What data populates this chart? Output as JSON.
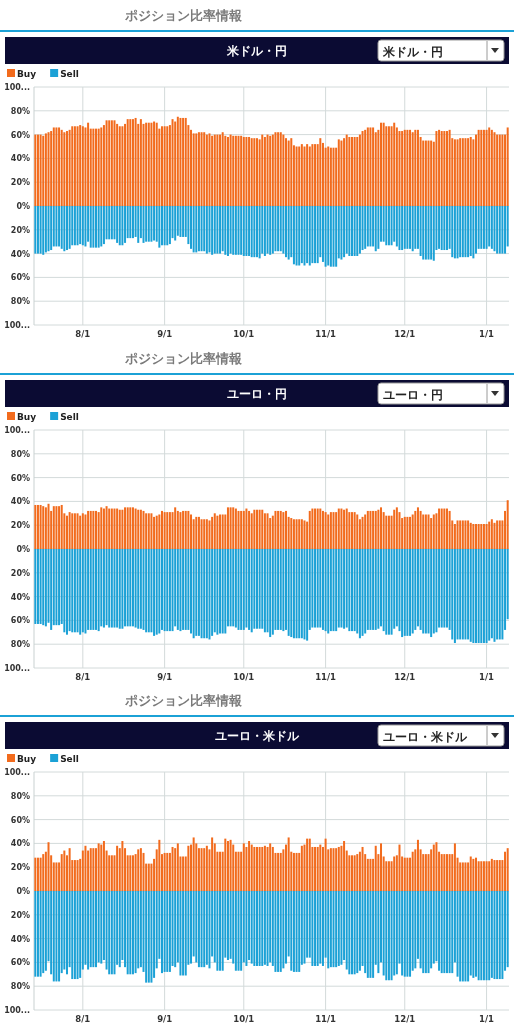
{
  "chart_data": [
    {
      "type": "bar",
      "stacked": true,
      "subtitle": "ポジション比率情報",
      "title": "米ドル・円",
      "annotations": [
        "米ドル・円"
      ],
      "legend": "top left",
      "grid": true,
      "ylim": [
        -100,
        100
      ],
      "yticks": [
        {
          "value": 100,
          "label": "100..."
        },
        {
          "value": 80,
          "label": "80%"
        },
        {
          "value": 60,
          "label": "60%"
        },
        {
          "value": 40,
          "label": "40%"
        },
        {
          "value": 20,
          "label": "20%"
        },
        {
          "value": 0,
          "label": "0%"
        },
        {
          "value": -20,
          "label": "20%"
        },
        {
          "value": -40,
          "label": "40%"
        },
        {
          "value": -60,
          "label": "60%"
        },
        {
          "value": -80,
          "label": "80%"
        },
        {
          "value": -100,
          "label": "100..."
        }
      ],
      "categories": [
        null,
        null,
        null,
        null,
        null,
        null,
        null,
        null,
        null,
        null,
        null,
        null,
        null,
        null,
        null,
        null,
        null,
        null,
        "8/1",
        null,
        null,
        null,
        null,
        null,
        null,
        null,
        null,
        null,
        null,
        null,
        null,
        null,
        null,
        null,
        null,
        null,
        null,
        null,
        null,
        null,
        null,
        null,
        null,
        null,
        null,
        null,
        null,
        null,
        null,
        "9/1",
        null,
        null,
        null,
        null,
        null,
        null,
        null,
        null,
        null,
        null,
        null,
        null,
        null,
        null,
        null,
        null,
        null,
        null,
        null,
        null,
        null,
        null,
        null,
        null,
        null,
        null,
        null,
        null,
        null,
        "10/1",
        null,
        null,
        null,
        null,
        null,
        null,
        null,
        null,
        null,
        null,
        null,
        null,
        null,
        null,
        null,
        null,
        null,
        null,
        null,
        null,
        null,
        null,
        null,
        null,
        null,
        null,
        null,
        null,
        null,
        null,
        "11/1",
        null,
        null,
        null,
        null,
        null,
        null,
        null,
        null,
        null,
        null,
        null,
        null,
        null,
        null,
        null,
        null,
        null,
        null,
        null,
        null,
        null,
        null,
        null,
        null,
        null,
        null,
        null,
        null,
        null,
        "12/1",
        null,
        null,
        null,
        null,
        null,
        null,
        null,
        null,
        null,
        null,
        null,
        null,
        null,
        null,
        null,
        null,
        null,
        null,
        null,
        null,
        null,
        null,
        null,
        null,
        null,
        null,
        null,
        null,
        null,
        null,
        "1/1",
        null,
        null,
        null,
        null,
        null,
        null,
        null,
        null
      ],
      "series": [
        {
          "name": "Buy",
          "color": "#f26b1d",
          "values": [
            60,
            60,
            60,
            59,
            61,
            62,
            63,
            66,
            66,
            66,
            64,
            62,
            63,
            64,
            67,
            67,
            67,
            68,
            67,
            66,
            70,
            65,
            65,
            65,
            65,
            66,
            68,
            72,
            72,
            72,
            72,
            69,
            67,
            67,
            69,
            73,
            73,
            73,
            74,
            69,
            73,
            69,
            70,
            70,
            70,
            71,
            70,
            65,
            67,
            67,
            67,
            68,
            73,
            71,
            75,
            74,
            74,
            74,
            68,
            64,
            61,
            61,
            62,
            62,
            62,
            60,
            61,
            59,
            60,
            60,
            60,
            62,
            59,
            58,
            60,
            59,
            59,
            59,
            59,
            58,
            58,
            58,
            57,
            57,
            57,
            56,
            60,
            58,
            60,
            59,
            60,
            62,
            62,
            62,
            60,
            57,
            55,
            57,
            51,
            50,
            50,
            52,
            50,
            52,
            50,
            52,
            52,
            52,
            57,
            53,
            49,
            50,
            49,
            49,
            49,
            56,
            55,
            57,
            60,
            58,
            58,
            58,
            58,
            60,
            63,
            64,
            66,
            66,
            66,
            62,
            64,
            70,
            70,
            67,
            67,
            67,
            70,
            66,
            63,
            63,
            64,
            64,
            64,
            62,
            64,
            64,
            58,
            55,
            55,
            55,
            55,
            54,
            63,
            64,
            63,
            63,
            63,
            64,
            57,
            56,
            56,
            57,
            57,
            57,
            57,
            58,
            56,
            60,
            64,
            64,
            64,
            64,
            66,
            64,
            62,
            60,
            60,
            60,
            60,
            66
          ]
        },
        {
          "name": "Sell",
          "color": "#1ba1d6",
          "values": [
            -40,
            -40,
            -40,
            -41,
            -39,
            -38,
            -37,
            -34,
            -34,
            -34,
            -36,
            -38,
            -37,
            -36,
            -33,
            -33,
            -33,
            -32,
            -33,
            -34,
            -30,
            -35,
            -35,
            -35,
            -35,
            -34,
            -32,
            -28,
            -28,
            -28,
            -28,
            -31,
            -33,
            -33,
            -31,
            -27,
            -27,
            -27,
            -26,
            -31,
            -27,
            -31,
            -30,
            -30,
            -30,
            -29,
            -30,
            -35,
            -33,
            -33,
            -33,
            -32,
            -27,
            -29,
            -25,
            -26,
            -26,
            -26,
            -32,
            -36,
            -39,
            -39,
            -38,
            -38,
            -38,
            -40,
            -39,
            -41,
            -40,
            -40,
            -40,
            -38,
            -41,
            -42,
            -40,
            -41,
            -41,
            -41,
            -41,
            -42,
            -42,
            -42,
            -43,
            -43,
            -43,
            -44,
            -40,
            -42,
            -40,
            -41,
            -40,
            -38,
            -38,
            -38,
            -40,
            -43,
            -45,
            -43,
            -49,
            -50,
            -50,
            -48,
            -50,
            -48,
            -50,
            -48,
            -48,
            -48,
            -43,
            -47,
            -51,
            -50,
            -51,
            -51,
            -51,
            -44,
            -45,
            -43,
            -40,
            -42,
            -42,
            -42,
            -42,
            -40,
            -37,
            -36,
            -34,
            -34,
            -34,
            -38,
            -36,
            -30,
            -30,
            -33,
            -33,
            -33,
            -30,
            -34,
            -37,
            -37,
            -36,
            -36,
            -36,
            -38,
            -36,
            -36,
            -42,
            -45,
            -45,
            -45,
            -45,
            -46,
            -37,
            -36,
            -37,
            -37,
            -37,
            -36,
            -43,
            -44,
            -44,
            -43,
            -43,
            -43,
            -43,
            -42,
            -44,
            -40,
            -36,
            -36,
            -36,
            -36,
            -34,
            -36,
            -38,
            -40,
            -40,
            -40,
            -40,
            -34
          ]
        }
      ]
    },
    {
      "type": "bar",
      "stacked": true,
      "subtitle": "ポジション比率情報",
      "title": "ユーロ・円",
      "annotations": [
        "ユーロ・円"
      ],
      "legend": "top left",
      "grid": true,
      "ylim": [
        -100,
        100
      ],
      "yticks": [
        {
          "value": 100,
          "label": "100..."
        },
        {
          "value": 80,
          "label": "80%"
        },
        {
          "value": 60,
          "label": "60%"
        },
        {
          "value": 40,
          "label": "40%"
        },
        {
          "value": 20,
          "label": "20%"
        },
        {
          "value": 0,
          "label": "0%"
        },
        {
          "value": -20,
          "label": "20%"
        },
        {
          "value": -40,
          "label": "40%"
        },
        {
          "value": -60,
          "label": "60%"
        },
        {
          "value": -80,
          "label": "80%"
        },
        {
          "value": -100,
          "label": "100..."
        }
      ],
      "categories": [
        null,
        null,
        null,
        null,
        null,
        null,
        null,
        null,
        null,
        null,
        null,
        null,
        null,
        null,
        null,
        null,
        null,
        null,
        "8/1",
        null,
        null,
        null,
        null,
        null,
        null,
        null,
        null,
        null,
        null,
        null,
        null,
        null,
        null,
        null,
        null,
        null,
        null,
        null,
        null,
        null,
        null,
        null,
        null,
        null,
        null,
        null,
        null,
        null,
        null,
        "9/1",
        null,
        null,
        null,
        null,
        null,
        null,
        null,
        null,
        null,
        null,
        null,
        null,
        null,
        null,
        null,
        null,
        null,
        null,
        null,
        null,
        null,
        null,
        null,
        null,
        null,
        null,
        null,
        null,
        null,
        "10/1",
        null,
        null,
        null,
        null,
        null,
        null,
        null,
        null,
        null,
        null,
        null,
        null,
        null,
        null,
        null,
        null,
        null,
        null,
        null,
        null,
        null,
        null,
        null,
        null,
        null,
        null,
        null,
        null,
        null,
        null,
        "11/1",
        null,
        null,
        null,
        null,
        null,
        null,
        null,
        null,
        null,
        null,
        null,
        null,
        null,
        null,
        null,
        null,
        null,
        null,
        null,
        null,
        null,
        null,
        null,
        null,
        null,
        null,
        null,
        null,
        null,
        "12/1",
        null,
        null,
        null,
        null,
        null,
        null,
        null,
        null,
        null,
        null,
        null,
        null,
        null,
        null,
        null,
        null,
        null,
        null,
        null,
        null,
        null,
        null,
        null,
        null,
        null,
        null,
        null,
        null,
        null,
        null,
        "1/1",
        null,
        null,
        null,
        null,
        null,
        null,
        null,
        null
      ],
      "series": [
        {
          "name": "Buy",
          "color": "#f26b1d",
          "values": [
            37,
            37,
            37,
            36,
            35,
            38,
            32,
            36,
            36,
            36,
            37,
            30,
            28,
            31,
            30,
            30,
            30,
            28,
            30,
            29,
            32,
            32,
            32,
            32,
            31,
            35,
            34,
            36,
            34,
            34,
            34,
            34,
            33,
            33,
            35,
            35,
            35,
            35,
            34,
            33,
            33,
            32,
            30,
            30,
            30,
            27,
            28,
            29,
            32,
            31,
            31,
            31,
            31,
            35,
            32,
            31,
            32,
            32,
            32,
            29,
            25,
            27,
            27,
            25,
            25,
            25,
            24,
            27,
            30,
            28,
            29,
            29,
            29,
            35,
            35,
            35,
            34,
            32,
            32,
            32,
            34,
            32,
            30,
            33,
            33,
            33,
            33,
            30,
            30,
            26,
            28,
            32,
            32,
            32,
            31,
            32,
            27,
            26,
            25,
            25,
            25,
            25,
            24,
            23,
            32,
            34,
            34,
            34,
            34,
            32,
            31,
            29,
            31,
            31,
            31,
            34,
            34,
            33,
            34,
            31,
            31,
            31,
            29,
            25,
            27,
            29,
            32,
            32,
            32,
            32,
            33,
            35,
            31,
            28,
            28,
            28,
            33,
            35,
            31,
            26,
            27,
            27,
            27,
            29,
            32,
            35,
            32,
            29,
            29,
            29,
            26,
            29,
            30,
            34,
            34,
            34,
            34,
            32,
            24,
            21,
            24,
            24,
            24,
            24,
            24,
            22,
            21,
            21,
            21,
            21,
            21,
            21,
            23,
            25,
            22,
            24,
            24,
            24,
            32,
            41
          ]
        },
        {
          "name": "Sell",
          "color": "#1ba1d6",
          "values": [
            -63,
            -63,
            -63,
            -64,
            -65,
            -62,
            -68,
            -64,
            -64,
            -64,
            -63,
            -70,
            -72,
            -69,
            -70,
            -70,
            -70,
            -72,
            -70,
            -71,
            -68,
            -68,
            -68,
            -68,
            -69,
            -65,
            -66,
            -64,
            -66,
            -66,
            -66,
            -66,
            -67,
            -67,
            -65,
            -65,
            -65,
            -65,
            -66,
            -67,
            -67,
            -68,
            -70,
            -70,
            -70,
            -73,
            -72,
            -71,
            -68,
            -69,
            -69,
            -69,
            -69,
            -65,
            -68,
            -69,
            -68,
            -68,
            -68,
            -71,
            -75,
            -73,
            -73,
            -75,
            -75,
            -75,
            -76,
            -73,
            -70,
            -72,
            -71,
            -71,
            -71,
            -65,
            -65,
            -65,
            -66,
            -68,
            -68,
            -68,
            -66,
            -68,
            -70,
            -67,
            -67,
            -67,
            -67,
            -70,
            -70,
            -74,
            -72,
            -68,
            -68,
            -68,
            -69,
            -68,
            -73,
            -74,
            -75,
            -75,
            -75,
            -75,
            -76,
            -77,
            -68,
            -66,
            -66,
            -66,
            -66,
            -68,
            -69,
            -71,
            -69,
            -69,
            -69,
            -66,
            -66,
            -67,
            -66,
            -69,
            -69,
            -69,
            -71,
            -75,
            -73,
            -71,
            -68,
            -68,
            -68,
            -68,
            -67,
            -65,
            -69,
            -72,
            -72,
            -72,
            -67,
            -65,
            -69,
            -74,
            -73,
            -73,
            -73,
            -71,
            -68,
            -65,
            -68,
            -71,
            -71,
            -71,
            -74,
            -71,
            -70,
            -66,
            -66,
            -66,
            -66,
            -68,
            -76,
            -79,
            -76,
            -76,
            -76,
            -76,
            -76,
            -78,
            -79,
            -79,
            -79,
            -79,
            -79,
            -79,
            -77,
            -75,
            -78,
            -76,
            -76,
            -76,
            -68,
            -59
          ]
        }
      ]
    },
    {
      "type": "bar",
      "stacked": true,
      "subtitle": "ポジション比率情報",
      "title": "ユーロ・米ドル",
      "annotations": [
        "ユーロ・米ドル"
      ],
      "legend": "top left",
      "grid": true,
      "ylim": [
        -100,
        100
      ],
      "yticks": [
        {
          "value": 100,
          "label": "100..."
        },
        {
          "value": 80,
          "label": "80%"
        },
        {
          "value": 60,
          "label": "60%"
        },
        {
          "value": 40,
          "label": "40%"
        },
        {
          "value": 20,
          "label": "20%"
        },
        {
          "value": 0,
          "label": "0%"
        },
        {
          "value": -20,
          "label": "20%"
        },
        {
          "value": -40,
          "label": "40%"
        },
        {
          "value": -60,
          "label": "60%"
        },
        {
          "value": -80,
          "label": "80%"
        },
        {
          "value": -100,
          "label": "100..."
        }
      ],
      "categories": [
        null,
        null,
        null,
        null,
        null,
        null,
        null,
        null,
        null,
        null,
        null,
        null,
        null,
        null,
        null,
        null,
        null,
        null,
        "8/1",
        null,
        null,
        null,
        null,
        null,
        null,
        null,
        null,
        null,
        null,
        null,
        null,
        null,
        null,
        null,
        null,
        null,
        null,
        null,
        null,
        null,
        null,
        null,
        null,
        null,
        null,
        null,
        null,
        null,
        null,
        "9/1",
        null,
        null,
        null,
        null,
        null,
        null,
        null,
        null,
        null,
        null,
        null,
        null,
        null,
        null,
        null,
        null,
        null,
        null,
        null,
        null,
        null,
        null,
        null,
        null,
        null,
        null,
        null,
        null,
        null,
        "10/1",
        null,
        null,
        null,
        null,
        null,
        null,
        null,
        null,
        null,
        null,
        null,
        null,
        null,
        null,
        null,
        null,
        null,
        null,
        null,
        null,
        null,
        null,
        null,
        null,
        null,
        null,
        null,
        null,
        null,
        null,
        "11/1",
        null,
        null,
        null,
        null,
        null,
        null,
        null,
        null,
        null,
        null,
        null,
        null,
        null,
        null,
        null,
        null,
        null,
        null,
        null,
        null,
        null,
        null,
        null,
        null,
        null,
        null,
        null,
        null,
        null,
        "12/1",
        null,
        null,
        null,
        null,
        null,
        null,
        null,
        null,
        null,
        null,
        null,
        null,
        null,
        null,
        null,
        null,
        null,
        null,
        null,
        null,
        null,
        null,
        null,
        null,
        null,
        null,
        null,
        null,
        null,
        null,
        "1/1",
        null,
        null,
        null,
        null,
        null,
        null,
        null,
        null
      ],
      "series": [
        {
          "name": "Buy",
          "color": "#f26b1d",
          "values": [
            28,
            28,
            28,
            31,
            33,
            41,
            30,
            24,
            24,
            24,
            31,
            34,
            30,
            36,
            26,
            26,
            26,
            27,
            34,
            38,
            34,
            36,
            36,
            36,
            40,
            39,
            42,
            34,
            30,
            30,
            30,
            38,
            36,
            42,
            36,
            30,
            30,
            30,
            31,
            35,
            36,
            32,
            23,
            23,
            23,
            27,
            35,
            43,
            31,
            32,
            32,
            32,
            37,
            36,
            40,
            29,
            29,
            29,
            38,
            39,
            45,
            40,
            36,
            36,
            36,
            38,
            35,
            45,
            40,
            33,
            33,
            33,
            44,
            42,
            43,
            39,
            33,
            33,
            33,
            40,
            37,
            42,
            39,
            37,
            37,
            37,
            37,
            38,
            37,
            40,
            37,
            32,
            32,
            32,
            35,
            39,
            45,
            33,
            32,
            32,
            32,
            38,
            39,
            44,
            44,
            37,
            37,
            37,
            39,
            37,
            44,
            35,
            36,
            36,
            36,
            37,
            38,
            42,
            34,
            30,
            30,
            30,
            31,
            33,
            37,
            31,
            27,
            27,
            27,
            38,
            31,
            40,
            29,
            25,
            25,
            25,
            29,
            30,
            39,
            29,
            28,
            28,
            28,
            33,
            35,
            43,
            35,
            31,
            31,
            31,
            35,
            39,
            41,
            33,
            31,
            31,
            31,
            31,
            31,
            40,
            28,
            24,
            24,
            24,
            24,
            29,
            27,
            28,
            25,
            25,
            25,
            25,
            25,
            27,
            26,
            26,
            26,
            26,
            33,
            36
          ]
        },
        {
          "name": "Sell",
          "color": "#1ba1d6",
          "values": [
            -72,
            -72,
            -72,
            -69,
            -67,
            -59,
            -70,
            -76,
            -76,
            -76,
            -69,
            -66,
            -70,
            -64,
            -74,
            -74,
            -74,
            -73,
            -66,
            -62,
            -66,
            -64,
            -64,
            -64,
            -60,
            -61,
            -58,
            -66,
            -70,
            -70,
            -70,
            -62,
            -64,
            -58,
            -64,
            -70,
            -70,
            -70,
            -69,
            -65,
            -64,
            -68,
            -77,
            -77,
            -77,
            -73,
            -65,
            -57,
            -69,
            -68,
            -68,
            -68,
            -63,
            -64,
            -60,
            -71,
            -71,
            -71,
            -62,
            -61,
            -55,
            -60,
            -64,
            -64,
            -64,
            -62,
            -65,
            -55,
            -60,
            -67,
            -67,
            -67,
            -56,
            -58,
            -57,
            -61,
            -67,
            -67,
            -67,
            -60,
            -63,
            -58,
            -61,
            -63,
            -63,
            -63,
            -63,
            -62,
            -63,
            -60,
            -63,
            -68,
            -68,
            -68,
            -65,
            -61,
            -55,
            -67,
            -68,
            -68,
            -68,
            -62,
            -61,
            -56,
            -56,
            -63,
            -63,
            -63,
            -61,
            -63,
            -56,
            -65,
            -64,
            -64,
            -64,
            -63,
            -62,
            -58,
            -66,
            -70,
            -70,
            -70,
            -69,
            -67,
            -63,
            -69,
            -73,
            -73,
            -73,
            -62,
            -69,
            -60,
            -71,
            -75,
            -75,
            -75,
            -71,
            -70,
            -61,
            -71,
            -72,
            -72,
            -72,
            -67,
            -65,
            -57,
            -65,
            -69,
            -69,
            -69,
            -65,
            -61,
            -59,
            -67,
            -69,
            -69,
            -69,
            -69,
            -69,
            -60,
            -72,
            -76,
            -76,
            -76,
            -76,
            -71,
            -73,
            -72,
            -75,
            -75,
            -75,
            -75,
            -75,
            -73,
            -74,
            -74,
            -74,
            -74,
            -67,
            -64
          ]
        }
      ]
    }
  ]
}
